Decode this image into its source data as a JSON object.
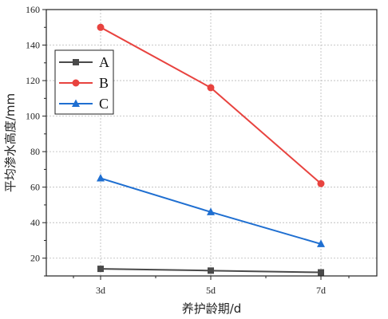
{
  "chart_data": {
    "type": "line",
    "title": "",
    "xlabel": "养护龄期/d",
    "ylabel": "平均渗水高度/mm",
    "categories": [
      "3d",
      "5d",
      "7d"
    ],
    "ylim": [
      10,
      160
    ],
    "yticks": [
      20,
      40,
      60,
      80,
      100,
      120,
      140,
      160
    ],
    "grid": true,
    "legend_position": "top-left",
    "series": [
      {
        "name": "A",
        "values": [
          14,
          13,
          12
        ],
        "color": "#4a4a4a",
        "marker": "square"
      },
      {
        "name": "B",
        "values": [
          150,
          116,
          62
        ],
        "color": "#e8433f",
        "marker": "circle"
      },
      {
        "name": "C",
        "values": [
          65,
          46,
          28
        ],
        "color": "#1f6fd1",
        "marker": "triangle"
      }
    ]
  }
}
